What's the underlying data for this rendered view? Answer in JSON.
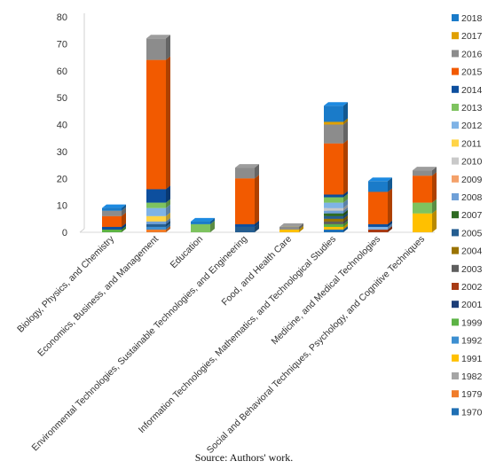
{
  "caption": "Source: Authors' work.",
  "chart_data": {
    "type": "bar",
    "stacked": true,
    "three_d": true,
    "title": "",
    "xlabel": "",
    "ylabel": "",
    "ylim": [
      0,
      80
    ],
    "yticks": [
      0,
      10,
      20,
      30,
      40,
      50,
      60,
      70,
      80
    ],
    "grid": false,
    "legend_position": "right",
    "categories": [
      "Biology, Physics, and Chemistry",
      "Economics, Business, and Management",
      "Education",
      "Environmental Technologies, Sustainable Technologies, and Engineering",
      "Food, and Health Care",
      "Information Technologies, Mathematics, and Technological Studies",
      "Medicine, and Medical Technologies",
      "Social and Behavioral Techniques, Psychology, and Cognitive Techniques"
    ],
    "series": [
      {
        "name": "1970",
        "color": "#1f6fb4",
        "values": [
          0,
          0,
          0,
          0,
          0,
          1,
          0,
          0
        ]
      },
      {
        "name": "1979",
        "color": "#f07c2a",
        "values": [
          0,
          1,
          0,
          0,
          0,
          0,
          0,
          0
        ]
      },
      {
        "name": "1982",
        "color": "#a5a5a5",
        "values": [
          0,
          0,
          0,
          0,
          0,
          0,
          0,
          0
        ]
      },
      {
        "name": "1991",
        "color": "#ffc000",
        "values": [
          0,
          0,
          0,
          0,
          1,
          1,
          0,
          7
        ]
      },
      {
        "name": "1992",
        "color": "#3d8fd1",
        "values": [
          0,
          1,
          0,
          0,
          0,
          0,
          0,
          0
        ]
      },
      {
        "name": "1999",
        "color": "#5cb345",
        "values": [
          1,
          0,
          0,
          0,
          0,
          1,
          0,
          0
        ]
      },
      {
        "name": "2001",
        "color": "#1c3e78",
        "values": [
          0,
          0,
          0,
          0,
          0,
          0,
          0,
          0
        ]
      },
      {
        "name": "2002",
        "color": "#a83b15",
        "values": [
          0,
          0,
          0,
          0,
          0,
          0,
          1,
          0
        ]
      },
      {
        "name": "2003",
        "color": "#5e5e5e",
        "values": [
          0,
          0,
          0,
          0,
          0,
          1,
          0,
          0
        ]
      },
      {
        "name": "2004",
        "color": "#9a7300",
        "values": [
          0,
          0,
          0,
          0,
          0,
          1,
          0,
          0
        ]
      },
      {
        "name": "2005",
        "color": "#255e91",
        "values": [
          0,
          1,
          0,
          2,
          0,
          1,
          0,
          0
        ]
      },
      {
        "name": "2007",
        "color": "#2e6b22",
        "values": [
          0,
          0,
          0,
          0,
          0,
          1,
          0,
          0
        ]
      },
      {
        "name": "2008",
        "color": "#6fa0d8",
        "values": [
          0,
          1,
          0,
          0,
          0,
          1,
          0,
          0
        ]
      },
      {
        "name": "2009",
        "color": "#f4a16a",
        "values": [
          0,
          0,
          0,
          0,
          0,
          0,
          0,
          0
        ]
      },
      {
        "name": "2010",
        "color": "#c9c9c9",
        "values": [
          0,
          0,
          0,
          0,
          0,
          1,
          0,
          0
        ]
      },
      {
        "name": "2011",
        "color": "#ffd447",
        "values": [
          0,
          2,
          0,
          0,
          0,
          0,
          0,
          0
        ]
      },
      {
        "name": "2012",
        "color": "#7fb3e6",
        "values": [
          0,
          3,
          0,
          0,
          0,
          2,
          1,
          0
        ]
      },
      {
        "name": "2013",
        "color": "#7ec35f",
        "values": [
          0,
          2,
          3,
          0,
          0,
          2,
          0,
          4
        ]
      },
      {
        "name": "2014",
        "color": "#0d4f9e",
        "values": [
          1,
          5,
          0,
          1,
          0,
          1,
          1,
          0
        ]
      },
      {
        "name": "2015",
        "color": "#f25a00",
        "values": [
          4,
          48,
          0,
          17,
          0,
          19,
          12,
          10
        ]
      },
      {
        "name": "2016",
        "color": "#8c8c8c",
        "values": [
          2,
          8,
          0,
          4,
          1,
          7,
          0,
          2
        ]
      },
      {
        "name": "2017",
        "color": "#e0a000",
        "values": [
          0,
          0,
          0,
          0,
          0,
          1,
          0,
          0
        ]
      },
      {
        "name": "2018",
        "color": "#1a7bc9",
        "values": [
          1,
          0,
          1,
          0,
          0,
          6,
          4,
          0
        ]
      }
    ]
  }
}
